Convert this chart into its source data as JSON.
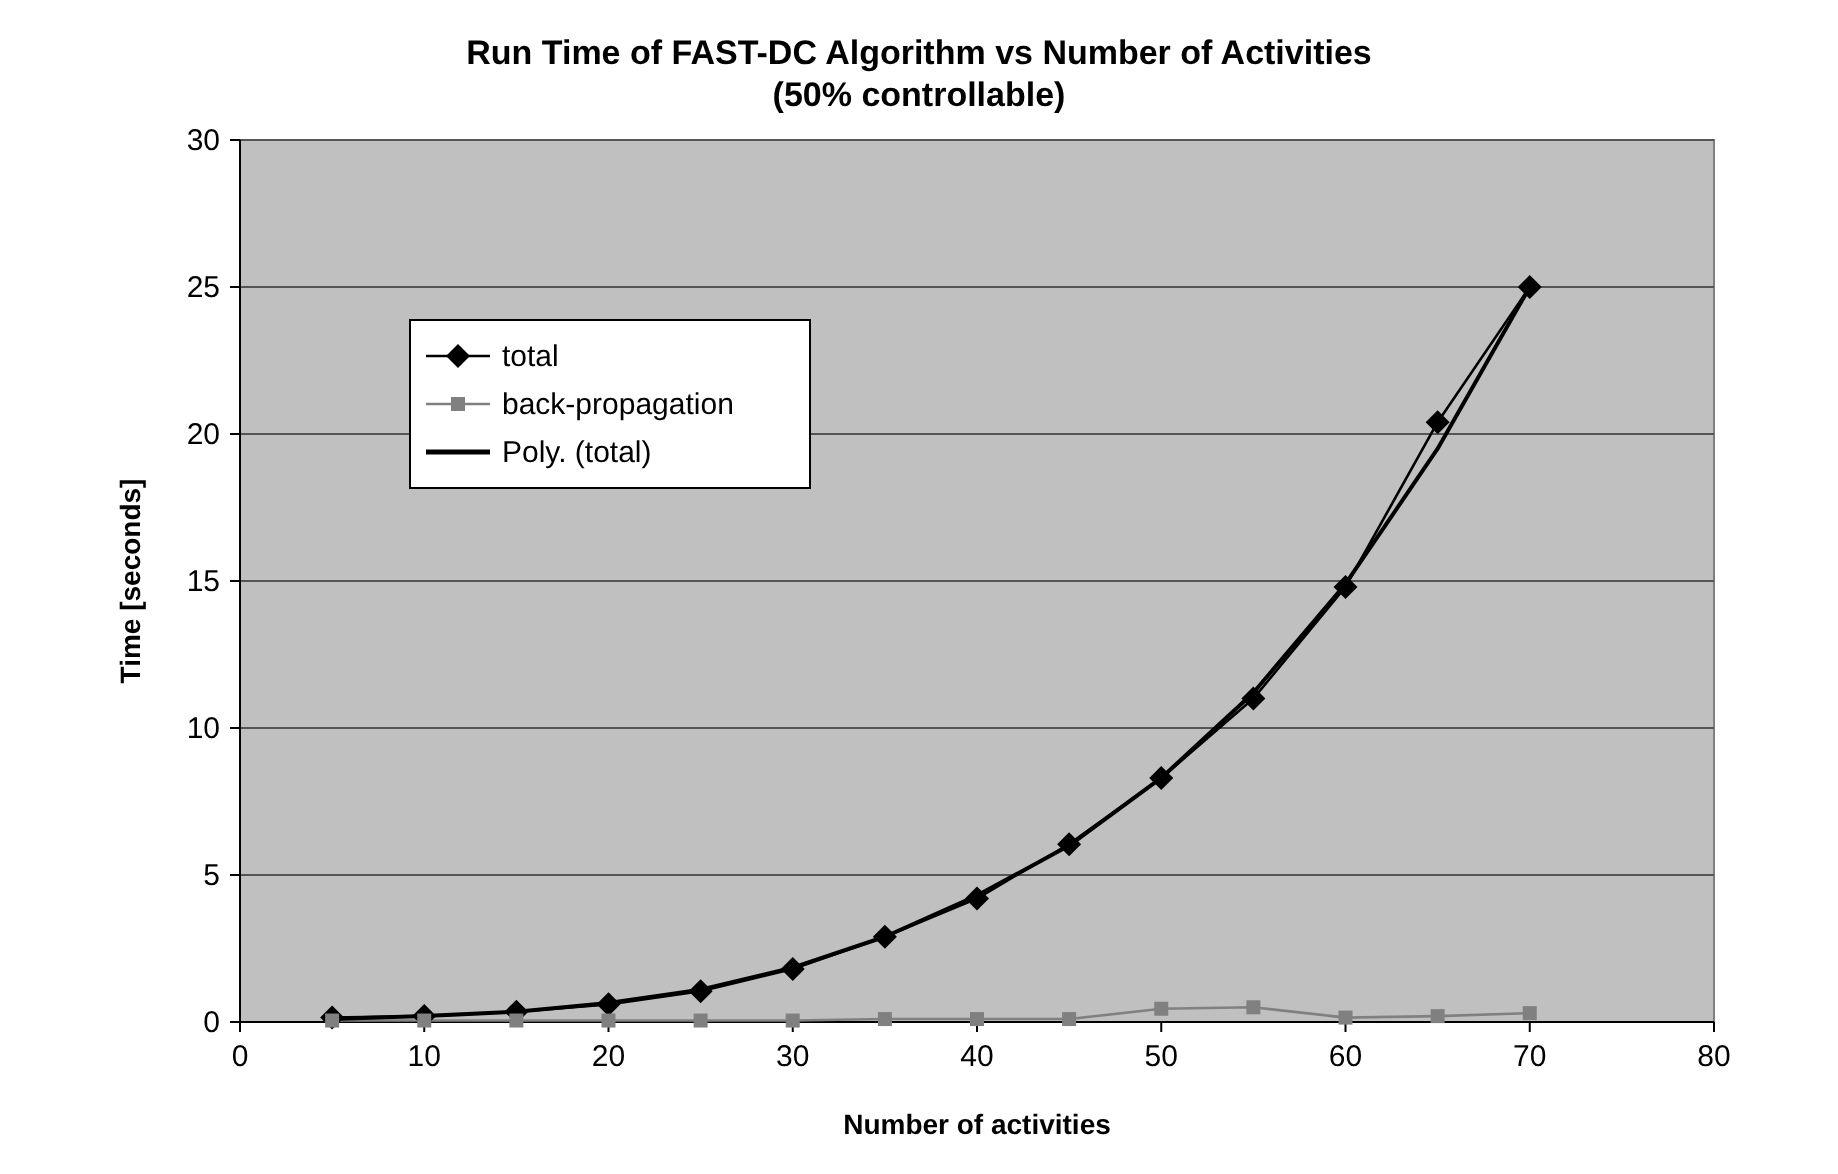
{
  "chart_data": {
    "type": "line",
    "title": "Run Time of FAST-DC Algorithm vs Number of Activities",
    "subtitle": "(50% controllable)",
    "xlabel": "Number of activities",
    "ylabel": "Time [seconds]",
    "xlim": [
      0,
      80
    ],
    "xticks": [
      0,
      10,
      20,
      30,
      40,
      50,
      60,
      70,
      80
    ],
    "ylim": [
      0,
      30
    ],
    "yticks": [
      0,
      5,
      10,
      15,
      20,
      25,
      30
    ],
    "grid": "y",
    "legend": "top left",
    "series": [
      {
        "name": "total",
        "color": "#000000",
        "marker": "diamond",
        "x": [
          5,
          10,
          15,
          20,
          25,
          30,
          35,
          40,
          45,
          50,
          55,
          60,
          65,
          70
        ],
        "values": [
          0.15,
          0.2,
          0.35,
          0.6,
          1.05,
          1.8,
          2.9,
          4.2,
          6.05,
          8.3,
          11.0,
          14.8,
          20.4,
          25.0
        ]
      },
      {
        "name": "back-propagation",
        "color": "#808080",
        "marker": "square",
        "x": [
          5,
          10,
          15,
          20,
          25,
          30,
          35,
          40,
          45,
          50,
          55,
          60,
          65,
          70
        ],
        "values": [
          0.05,
          0.05,
          0.05,
          0.05,
          0.05,
          0.05,
          0.1,
          0.1,
          0.1,
          0.45,
          0.5,
          0.15,
          0.2,
          0.3
        ]
      },
      {
        "name": "Poly. (total)",
        "color": "#000000",
        "marker": "none",
        "x": [
          5,
          10,
          15,
          20,
          25,
          30,
          35,
          40,
          45,
          50,
          55,
          60,
          65,
          70
        ],
        "values": [
          0.1,
          0.2,
          0.35,
          0.65,
          1.1,
          1.85,
          2.9,
          4.3,
          6.0,
          8.3,
          11.2,
          14.9,
          19.5,
          25.0
        ]
      }
    ]
  }
}
